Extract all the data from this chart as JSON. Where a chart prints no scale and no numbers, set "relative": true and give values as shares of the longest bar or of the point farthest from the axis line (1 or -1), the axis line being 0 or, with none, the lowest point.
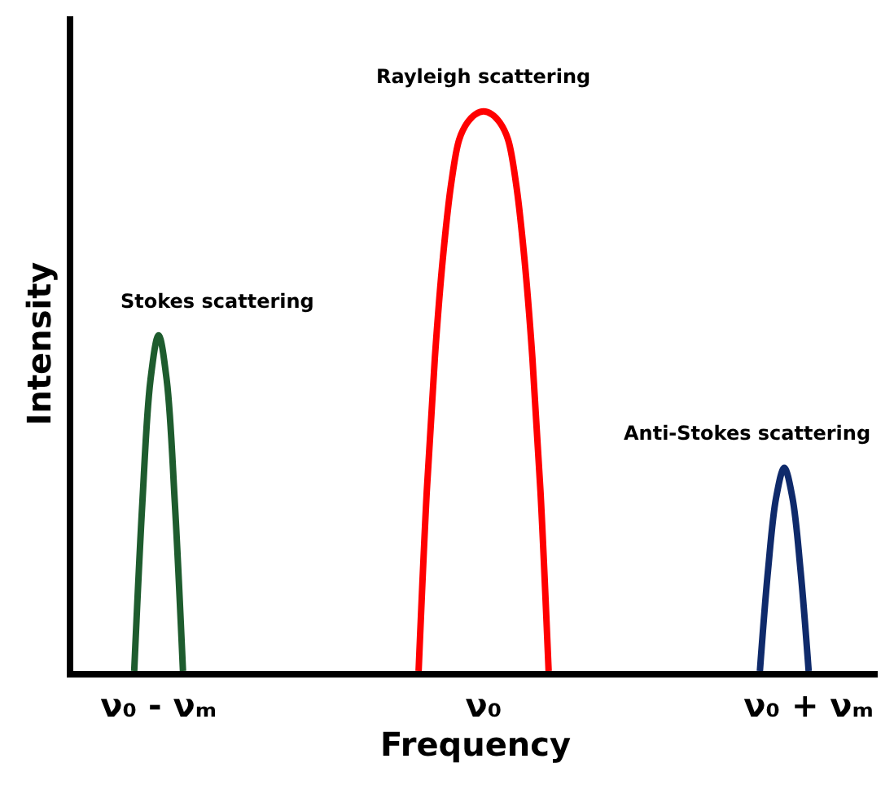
{
  "chart_data": {
    "type": "line",
    "relative": true,
    "xlabel": "Frequency",
    "ylabel": "Intensity",
    "categories": [
      null,
      null,
      null,
      null,
      null,
      null,
      null,
      null,
      null,
      null,
      "ν₀ - νₘ",
      null,
      null,
      null,
      null,
      null,
      null,
      null,
      null,
      null,
      null,
      null,
      null,
      null,
      null,
      null,
      null,
      null,
      null,
      null,
      null,
      null,
      null,
      null,
      null,
      null,
      null,
      null,
      null,
      null,
      null,
      null,
      null,
      null,
      null,
      null,
      null,
      null,
      null,
      null,
      "ν₀",
      null,
      null,
      null,
      null,
      null,
      null,
      null,
      null,
      null,
      null,
      null,
      null,
      null,
      null,
      null,
      null,
      null,
      null,
      null,
      null,
      null,
      null,
      null,
      null,
      null,
      null,
      null,
      null,
      null,
      null,
      null,
      null,
      null,
      null,
      null,
      null,
      null,
      null,
      null,
      "ν₀ + νₘ",
      null,
      null,
      null,
      null,
      null,
      null,
      null,
      null
    ],
    "marker": "none",
    "line_style": "solid",
    "series": [
      {
        "name": "Stokes scattering",
        "color": "#1e5c2e",
        "values": [
          null,
          null,
          null,
          null,
          null,
          null,
          null,
          0,
          0.3,
          0.52,
          0.6,
          0.52,
          0.3,
          0,
          null,
          null,
          null,
          null,
          null,
          null,
          null,
          null,
          null,
          null,
          null,
          null,
          null,
          null,
          null,
          null,
          null,
          null,
          null,
          null,
          null,
          null,
          null,
          null,
          null,
          null,
          null,
          null,
          null,
          null,
          null,
          null,
          null,
          null,
          null,
          null,
          null,
          null,
          null,
          null,
          null,
          null,
          null,
          null,
          null,
          null,
          null,
          null,
          null,
          null,
          null,
          null,
          null,
          null,
          null,
          null,
          null,
          null,
          null,
          null,
          null,
          null,
          null,
          null,
          null,
          null,
          null,
          null,
          null,
          null,
          null,
          null,
          null,
          null,
          null,
          null,
          null,
          null,
          null,
          null,
          null,
          null,
          null,
          null,
          null
        ]
      },
      {
        "name": "Rayleigh scattering",
        "color": "#ff0000",
        "values": [
          null,
          null,
          null,
          null,
          null,
          null,
          null,
          null,
          null,
          null,
          null,
          null,
          null,
          null,
          null,
          null,
          null,
          null,
          null,
          null,
          null,
          null,
          null,
          null,
          null,
          null,
          null,
          null,
          null,
          null,
          null,
          null,
          null,
          null,
          null,
          null,
          null,
          null,
          null,
          null,
          null,
          null,
          0,
          0.32,
          0.56,
          0.74,
          0.87,
          0.95,
          0.98,
          0.995,
          1,
          0.995,
          0.98,
          0.95,
          0.87,
          0.74,
          0.56,
          0.32,
          0,
          null,
          null,
          null,
          null,
          null,
          null,
          null,
          null,
          null,
          null,
          null,
          null,
          null,
          null,
          null,
          null,
          null,
          null,
          null,
          null,
          null,
          null,
          null,
          null,
          null,
          null,
          null,
          null,
          null,
          null,
          null,
          null,
          null,
          null,
          null,
          null,
          null,
          null,
          null,
          null
        ]
      },
      {
        "name": "Anti-Stokes scattering",
        "color": "#0f2a6b",
        "values": [
          null,
          null,
          null,
          null,
          null,
          null,
          null,
          null,
          null,
          null,
          null,
          null,
          null,
          null,
          null,
          null,
          null,
          null,
          null,
          null,
          null,
          null,
          null,
          null,
          null,
          null,
          null,
          null,
          null,
          null,
          null,
          null,
          null,
          null,
          null,
          null,
          null,
          null,
          null,
          null,
          null,
          null,
          null,
          null,
          null,
          null,
          null,
          null,
          null,
          null,
          null,
          null,
          null,
          null,
          null,
          null,
          null,
          null,
          null,
          null,
          null,
          null,
          null,
          null,
          null,
          null,
          null,
          null,
          null,
          null,
          null,
          null,
          null,
          null,
          null,
          null,
          null,
          null,
          null,
          null,
          null,
          null,
          null,
          null,
          0,
          0.18,
          0.31,
          0.363,
          0.31,
          0.18,
          0,
          null,
          null,
          null,
          null,
          null,
          null,
          null,
          null
        ]
      }
    ]
  }
}
